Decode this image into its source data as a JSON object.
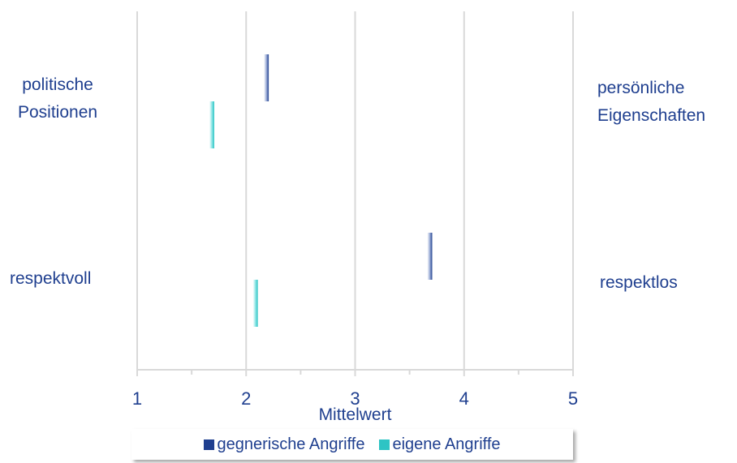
{
  "chart_data": {
    "type": "dot-range",
    "categories": [
      {
        "left": [
          "politische",
          "Positionen"
        ],
        "right": [
          "persönliche",
          "Eigenschaften"
        ]
      },
      {
        "left": [
          "respektvoll"
        ],
        "right": [
          "respektlos"
        ]
      }
    ],
    "series": [
      {
        "name": "gegnerische Angriffe",
        "color": "#1f3f8f",
        "values": [
          2.2,
          3.7
        ]
      },
      {
        "name": "eigene Angriffe",
        "color": "#2ec4c4",
        "values": [
          1.7,
          2.1
        ]
      }
    ],
    "xlim": [
      1,
      5
    ],
    "x_ticks": [
      "1",
      "2",
      "3",
      "4",
      "5"
    ],
    "xlabel": "Mittelwert",
    "grid": true,
    "legend_position": "bottom"
  }
}
